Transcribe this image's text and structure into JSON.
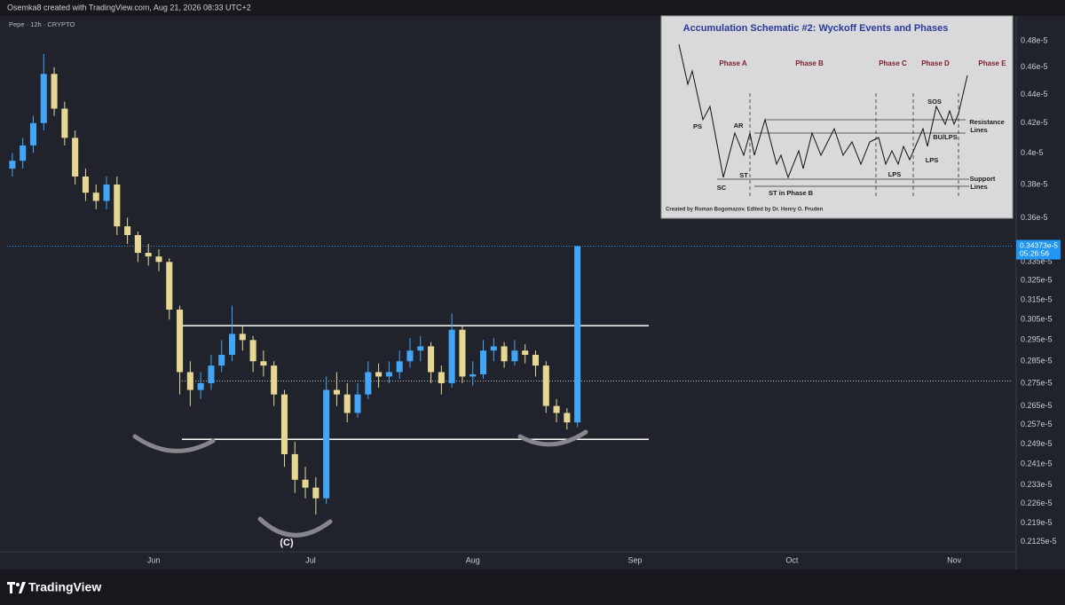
{
  "header": {
    "credit": "Osemka8 created with TradingView.com, Aug 21, 2026 08:33 UTC+2",
    "symbol": "Pepe · 12h · CRYPTO"
  },
  "chart_data": {
    "type": "candlestick",
    "open": [
      0.39,
      0.395,
      0.405,
      0.42,
      0.455,
      0.43,
      0.41,
      0.385,
      0.375,
      0.37,
      0.38,
      0.355,
      0.35,
      0.34,
      0.338,
      0.335,
      0.31,
      0.28,
      0.272,
      0.275,
      0.283,
      0.288,
      0.298,
      0.295,
      0.285,
      0.283,
      0.27,
      0.245,
      0.235,
      0.232,
      0.228,
      0.272,
      0.27,
      0.262,
      0.27,
      0.28,
      0.278,
      0.28,
      0.285,
      0.29,
      0.292,
      0.28,
      0.275,
      0.3,
      0.278,
      0.279,
      0.29,
      0.292,
      0.285,
      0.29,
      0.288,
      0.283,
      0.265,
      0.262,
      0.258
    ],
    "high": [
      0.4,
      0.41,
      0.425,
      0.47,
      0.46,
      0.435,
      0.415,
      0.39,
      0.38,
      0.385,
      0.385,
      0.36,
      0.352,
      0.345,
      0.342,
      0.337,
      0.312,
      0.285,
      0.28,
      0.288,
      0.295,
      0.312,
      0.302,
      0.297,
      0.29,
      0.285,
      0.272,
      0.25,
      0.24,
      0.236,
      0.278,
      0.28,
      0.275,
      0.275,
      0.285,
      0.284,
      0.285,
      0.29,
      0.296,
      0.297,
      0.294,
      0.283,
      0.308,
      0.302,
      0.285,
      0.295,
      0.296,
      0.294,
      0.295,
      0.293,
      0.29,
      0.285,
      0.268,
      0.264,
      0.34373
    ],
    "low": [
      0.385,
      0.39,
      0.4,
      0.415,
      0.425,
      0.405,
      0.38,
      0.37,
      0.365,
      0.365,
      0.35,
      0.345,
      0.335,
      0.333,
      0.33,
      0.305,
      0.27,
      0.265,
      0.268,
      0.272,
      0.28,
      0.285,
      0.29,
      0.28,
      0.278,
      0.265,
      0.24,
      0.23,
      0.228,
      0.222,
      0.226,
      0.265,
      0.258,
      0.26,
      0.268,
      0.273,
      0.275,
      0.277,
      0.282,
      0.285,
      0.275,
      0.27,
      0.273,
      0.275,
      0.274,
      0.277,
      0.285,
      0.282,
      0.283,
      0.284,
      0.278,
      0.262,
      0.258,
      0.255,
      0.256
    ],
    "close": [
      0.395,
      0.405,
      0.42,
      0.455,
      0.43,
      0.41,
      0.385,
      0.375,
      0.37,
      0.38,
      0.355,
      0.35,
      0.34,
      0.338,
      0.335,
      0.31,
      0.28,
      0.272,
      0.275,
      0.283,
      0.288,
      0.298,
      0.295,
      0.285,
      0.283,
      0.27,
      0.245,
      0.235,
      0.232,
      0.228,
      0.272,
      0.27,
      0.262,
      0.27,
      0.28,
      0.278,
      0.28,
      0.285,
      0.29,
      0.292,
      0.28,
      0.275,
      0.3,
      0.278,
      0.279,
      0.29,
      0.292,
      0.285,
      0.29,
      0.288,
      0.283,
      0.265,
      0.262,
      0.258,
      0.34373
    ],
    "up_color": "#42a5f5",
    "down_color": "#e6d894",
    "log_scale": true,
    "grid": false,
    "xlim": [
      -0.5,
      95.5
    ],
    "xticks": [
      {
        "value": 13.5,
        "label": "Jun"
      },
      {
        "value": 28.5,
        "label": "Jul"
      },
      {
        "value": 44,
        "label": "Aug"
      },
      {
        "value": 59.5,
        "label": "Sep"
      },
      {
        "value": 74.5,
        "label": "Oct"
      },
      {
        "value": 90,
        "label": "Nov"
      }
    ],
    "ylim": [
      0.209,
      0.5
    ],
    "yticks": [
      {
        "value": 0.48,
        "label": "0.48e-5"
      },
      {
        "value": 0.46,
        "label": "0.46e-5"
      },
      {
        "value": 0.44,
        "label": "0.44e-5"
      },
      {
        "value": 0.42,
        "label": "0.42e-5"
      },
      {
        "value": 0.4,
        "label": "0.4e-5"
      },
      {
        "value": 0.38,
        "label": "0.38e-5"
      },
      {
        "value": 0.36,
        "label": "0.36e-5"
      },
      {
        "value": 0.335,
        "label": "0.335e-5"
      },
      {
        "value": 0.325,
        "label": "0.325e-5"
      },
      {
        "value": 0.315,
        "label": "0.315e-5"
      },
      {
        "value": 0.305,
        "label": "0.305e-5"
      },
      {
        "value": 0.295,
        "label": "0.295e-5"
      },
      {
        "value": 0.285,
        "label": "0.285e-5"
      },
      {
        "value": 0.275,
        "label": "0.275e-5"
      },
      {
        "value": 0.265,
        "label": "0.265e-5"
      },
      {
        "value": 0.257,
        "label": "0.257e-5"
      },
      {
        "value": 0.249,
        "label": "0.249e-5"
      },
      {
        "value": 0.241,
        "label": "0.241e-5"
      },
      {
        "value": 0.233,
        "label": "0.233e-5"
      },
      {
        "value": 0.226,
        "label": "0.226e-5"
      },
      {
        "value": 0.219,
        "label": "0.219e-5"
      },
      {
        "value": 0.2125,
        "label": "0.2125e-5"
      }
    ],
    "range_lines": [
      0.302,
      0.251
    ],
    "mid_line": 0.276,
    "last_price": {
      "value": 0.34373,
      "label": "0.34373e-5"
    },
    "countdown": "05:26:56",
    "annotation": "(C)"
  },
  "inset": {
    "title": "Accumulation Schematic #2: Wyckoff Events and Phases",
    "phases": [
      "Phase A",
      "Phase B",
      "Phase C",
      "Phase D",
      "Phase E"
    ],
    "labels": [
      "PS",
      "AR",
      "SC",
      "ST",
      "ST in Phase B",
      "LPS",
      "LPS",
      "SOS",
      "BU/LPS"
    ],
    "resistance": [
      "Resistance",
      "Lines"
    ],
    "support": [
      "Support",
      "Lines"
    ],
    "credit": "Created by Roman Bogomazov. Edited by Dr. Henry O. Pruden"
  },
  "footer": {
    "brand": "TradingView"
  }
}
